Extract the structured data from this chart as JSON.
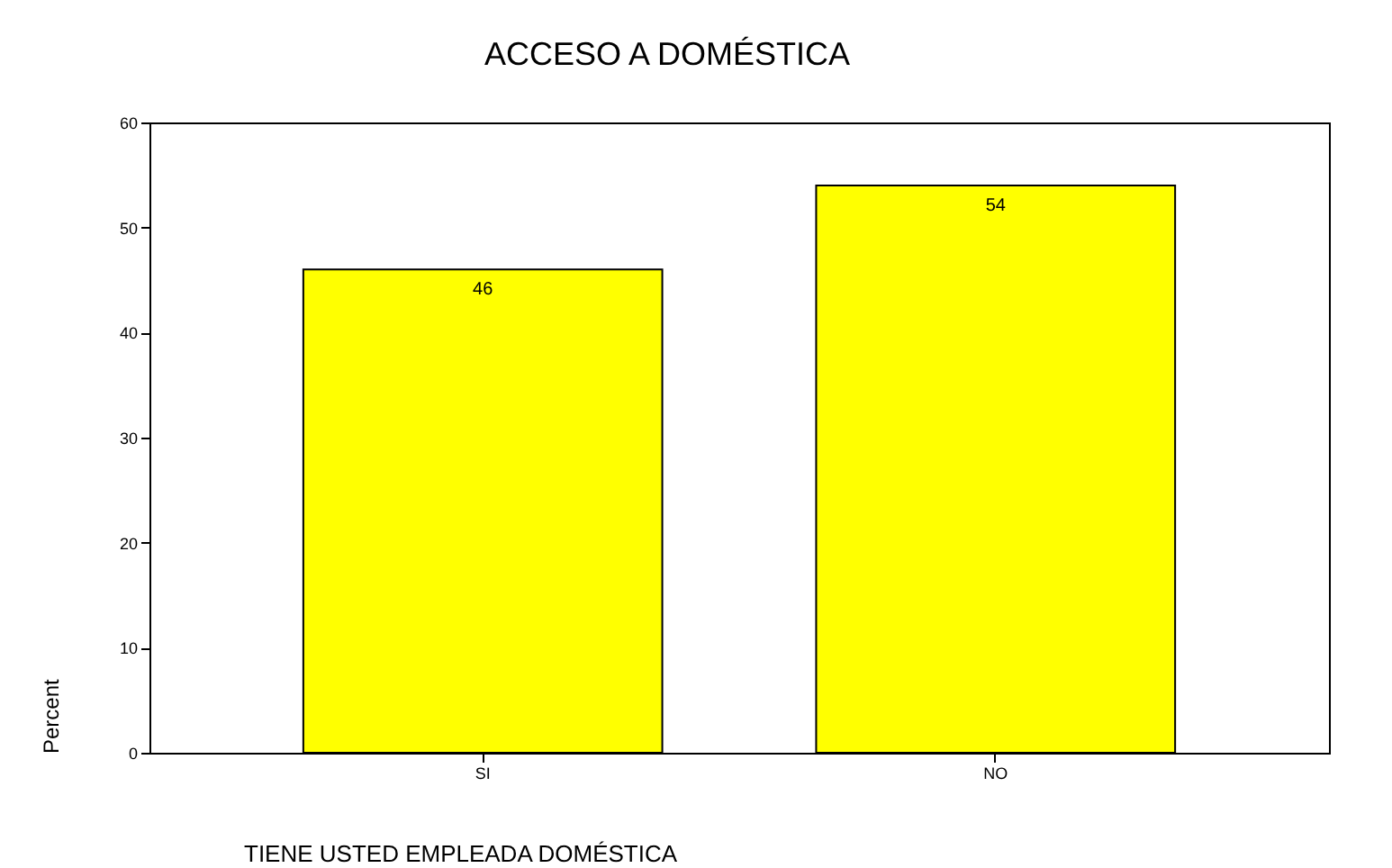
{
  "chart_data": {
    "type": "bar",
    "title": "ACCESO A DOMÉSTICA",
    "xlabel": "TIENE USTED EMPLEADA DOMÉSTICA",
    "ylabel": "Percent",
    "categories": [
      "SI",
      "NO"
    ],
    "series": [
      {
        "color": "#ffff00",
        "values": [
          46,
          54
        ]
      }
    ],
    "ylim": [
      0,
      60
    ],
    "yticks": [
      0,
      10,
      20,
      30,
      40,
      50,
      60
    ],
    "grid": false,
    "data_labels": true
  }
}
